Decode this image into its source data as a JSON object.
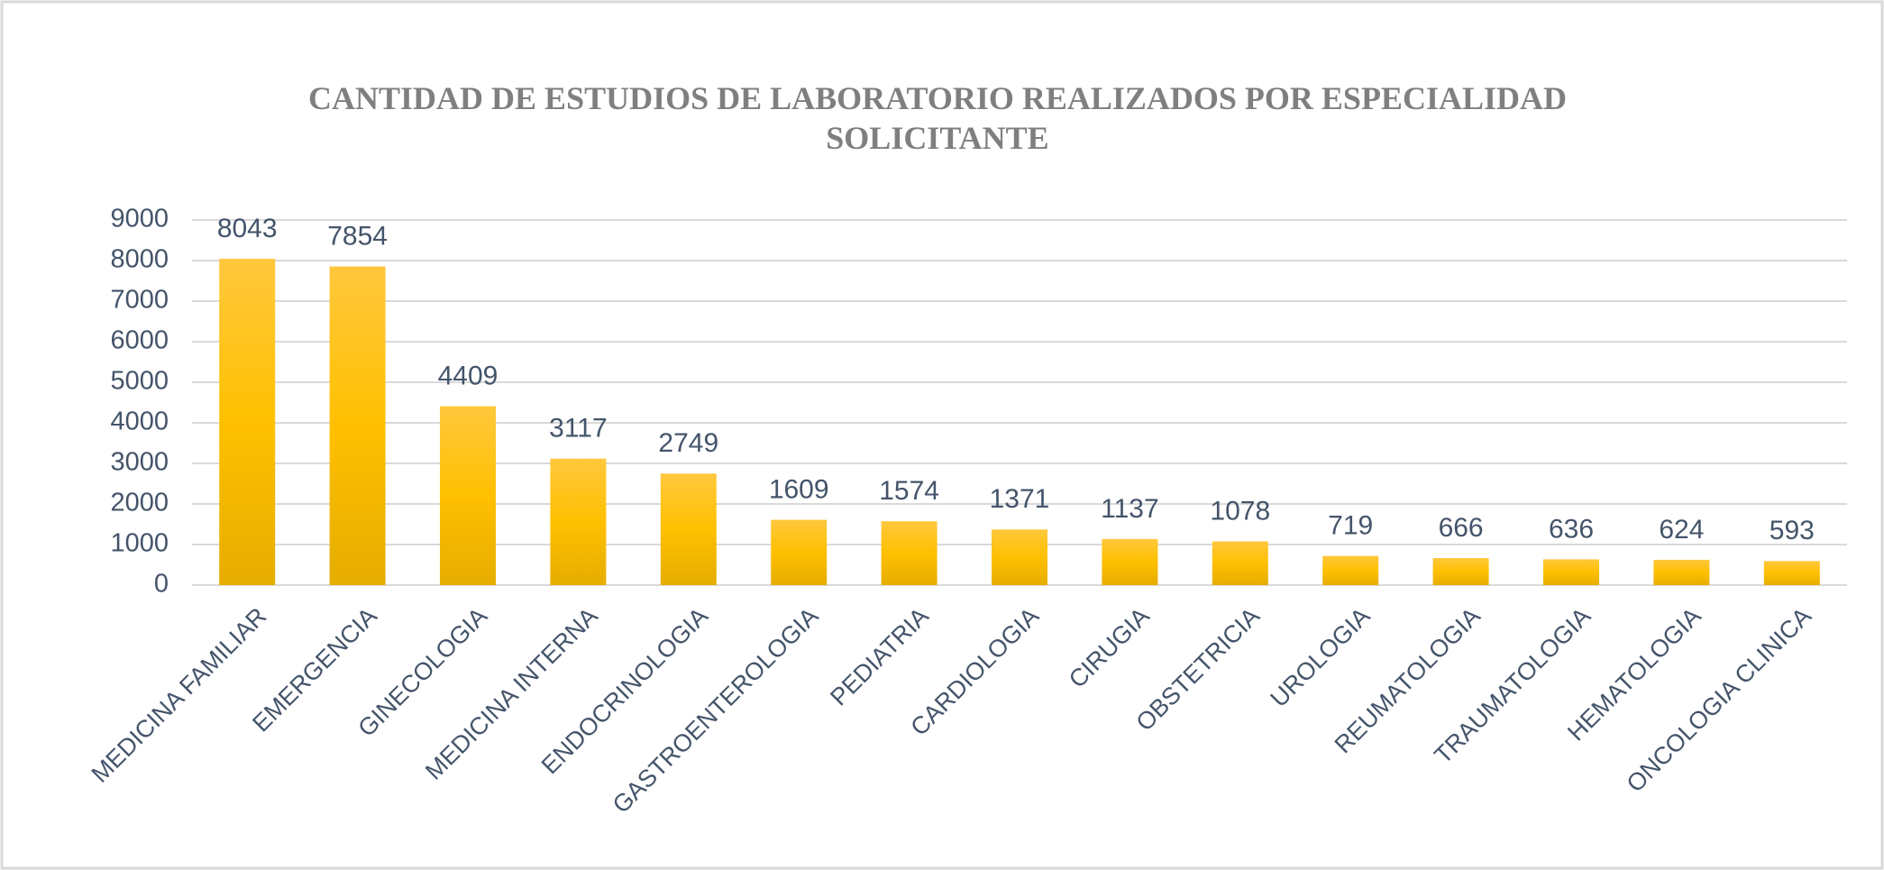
{
  "chart_data": {
    "type": "bar",
    "title": "CANTIDAD DE ESTUDIOS DE LABORATORIO REALIZADOS POR ESPECIALIDAD SOLICITANTE",
    "categories": [
      "MEDICINA FAMILIAR",
      "EMERGENCIA",
      "GINECOLOGIA",
      "MEDICINA INTERNA",
      "ENDOCRINOLOGIA",
      "GASTROENTEROLOGIA",
      "PEDIATRIA",
      "CARDIOLOGIA",
      "CIRUGIA",
      "OBSTETRICIA",
      "UROLOGIA",
      "REUMATOLOGIA",
      "TRAUMATOLOGIA",
      "HEMATOLOGIA",
      "ONCOLOGIA CLINICA"
    ],
    "values": [
      8043,
      7854,
      4409,
      3117,
      2749,
      1609,
      1574,
      1371,
      1137,
      1078,
      719,
      666,
      636,
      624,
      593
    ],
    "color": "#ffc000",
    "ylim": [
      0,
      9000
    ],
    "yticks": [
      0,
      1000,
      2000,
      3000,
      4000,
      5000,
      6000,
      7000,
      8000,
      9000
    ],
    "grid": true
  }
}
